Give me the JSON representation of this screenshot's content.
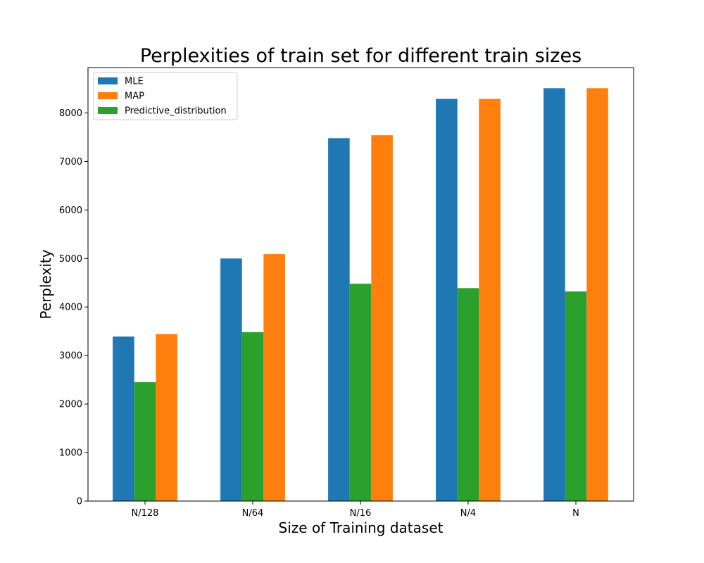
{
  "chart_data": {
    "type": "bar",
    "title": "Perplexities of train set for different train sizes",
    "xlabel": "Size of Training dataset",
    "ylabel": "Perplexity",
    "categories": [
      "N/128",
      "N/64",
      "N/16",
      "N/4",
      "N"
    ],
    "series": [
      {
        "name": "MLE",
        "color": "#1f77b4",
        "values": [
          3390,
          5000,
          7480,
          8290,
          8510
        ]
      },
      {
        "name": "Predictive_distribution",
        "color": "#2ca02c",
        "values": [
          2450,
          3480,
          4480,
          4390,
          4320
        ]
      },
      {
        "name": "MAP",
        "color": "#ff7f0e",
        "values": [
          3440,
          5090,
          7540,
          8290,
          8510
        ]
      }
    ],
    "legend_order": [
      "MLE",
      "MAP",
      "Predictive_distribution"
    ],
    "legend_position": "upper-left",
    "ylim": [
      0,
      8935
    ],
    "yticks": [
      0,
      1000,
      2000,
      3000,
      4000,
      5000,
      6000,
      7000,
      8000
    ],
    "grid": false
  }
}
